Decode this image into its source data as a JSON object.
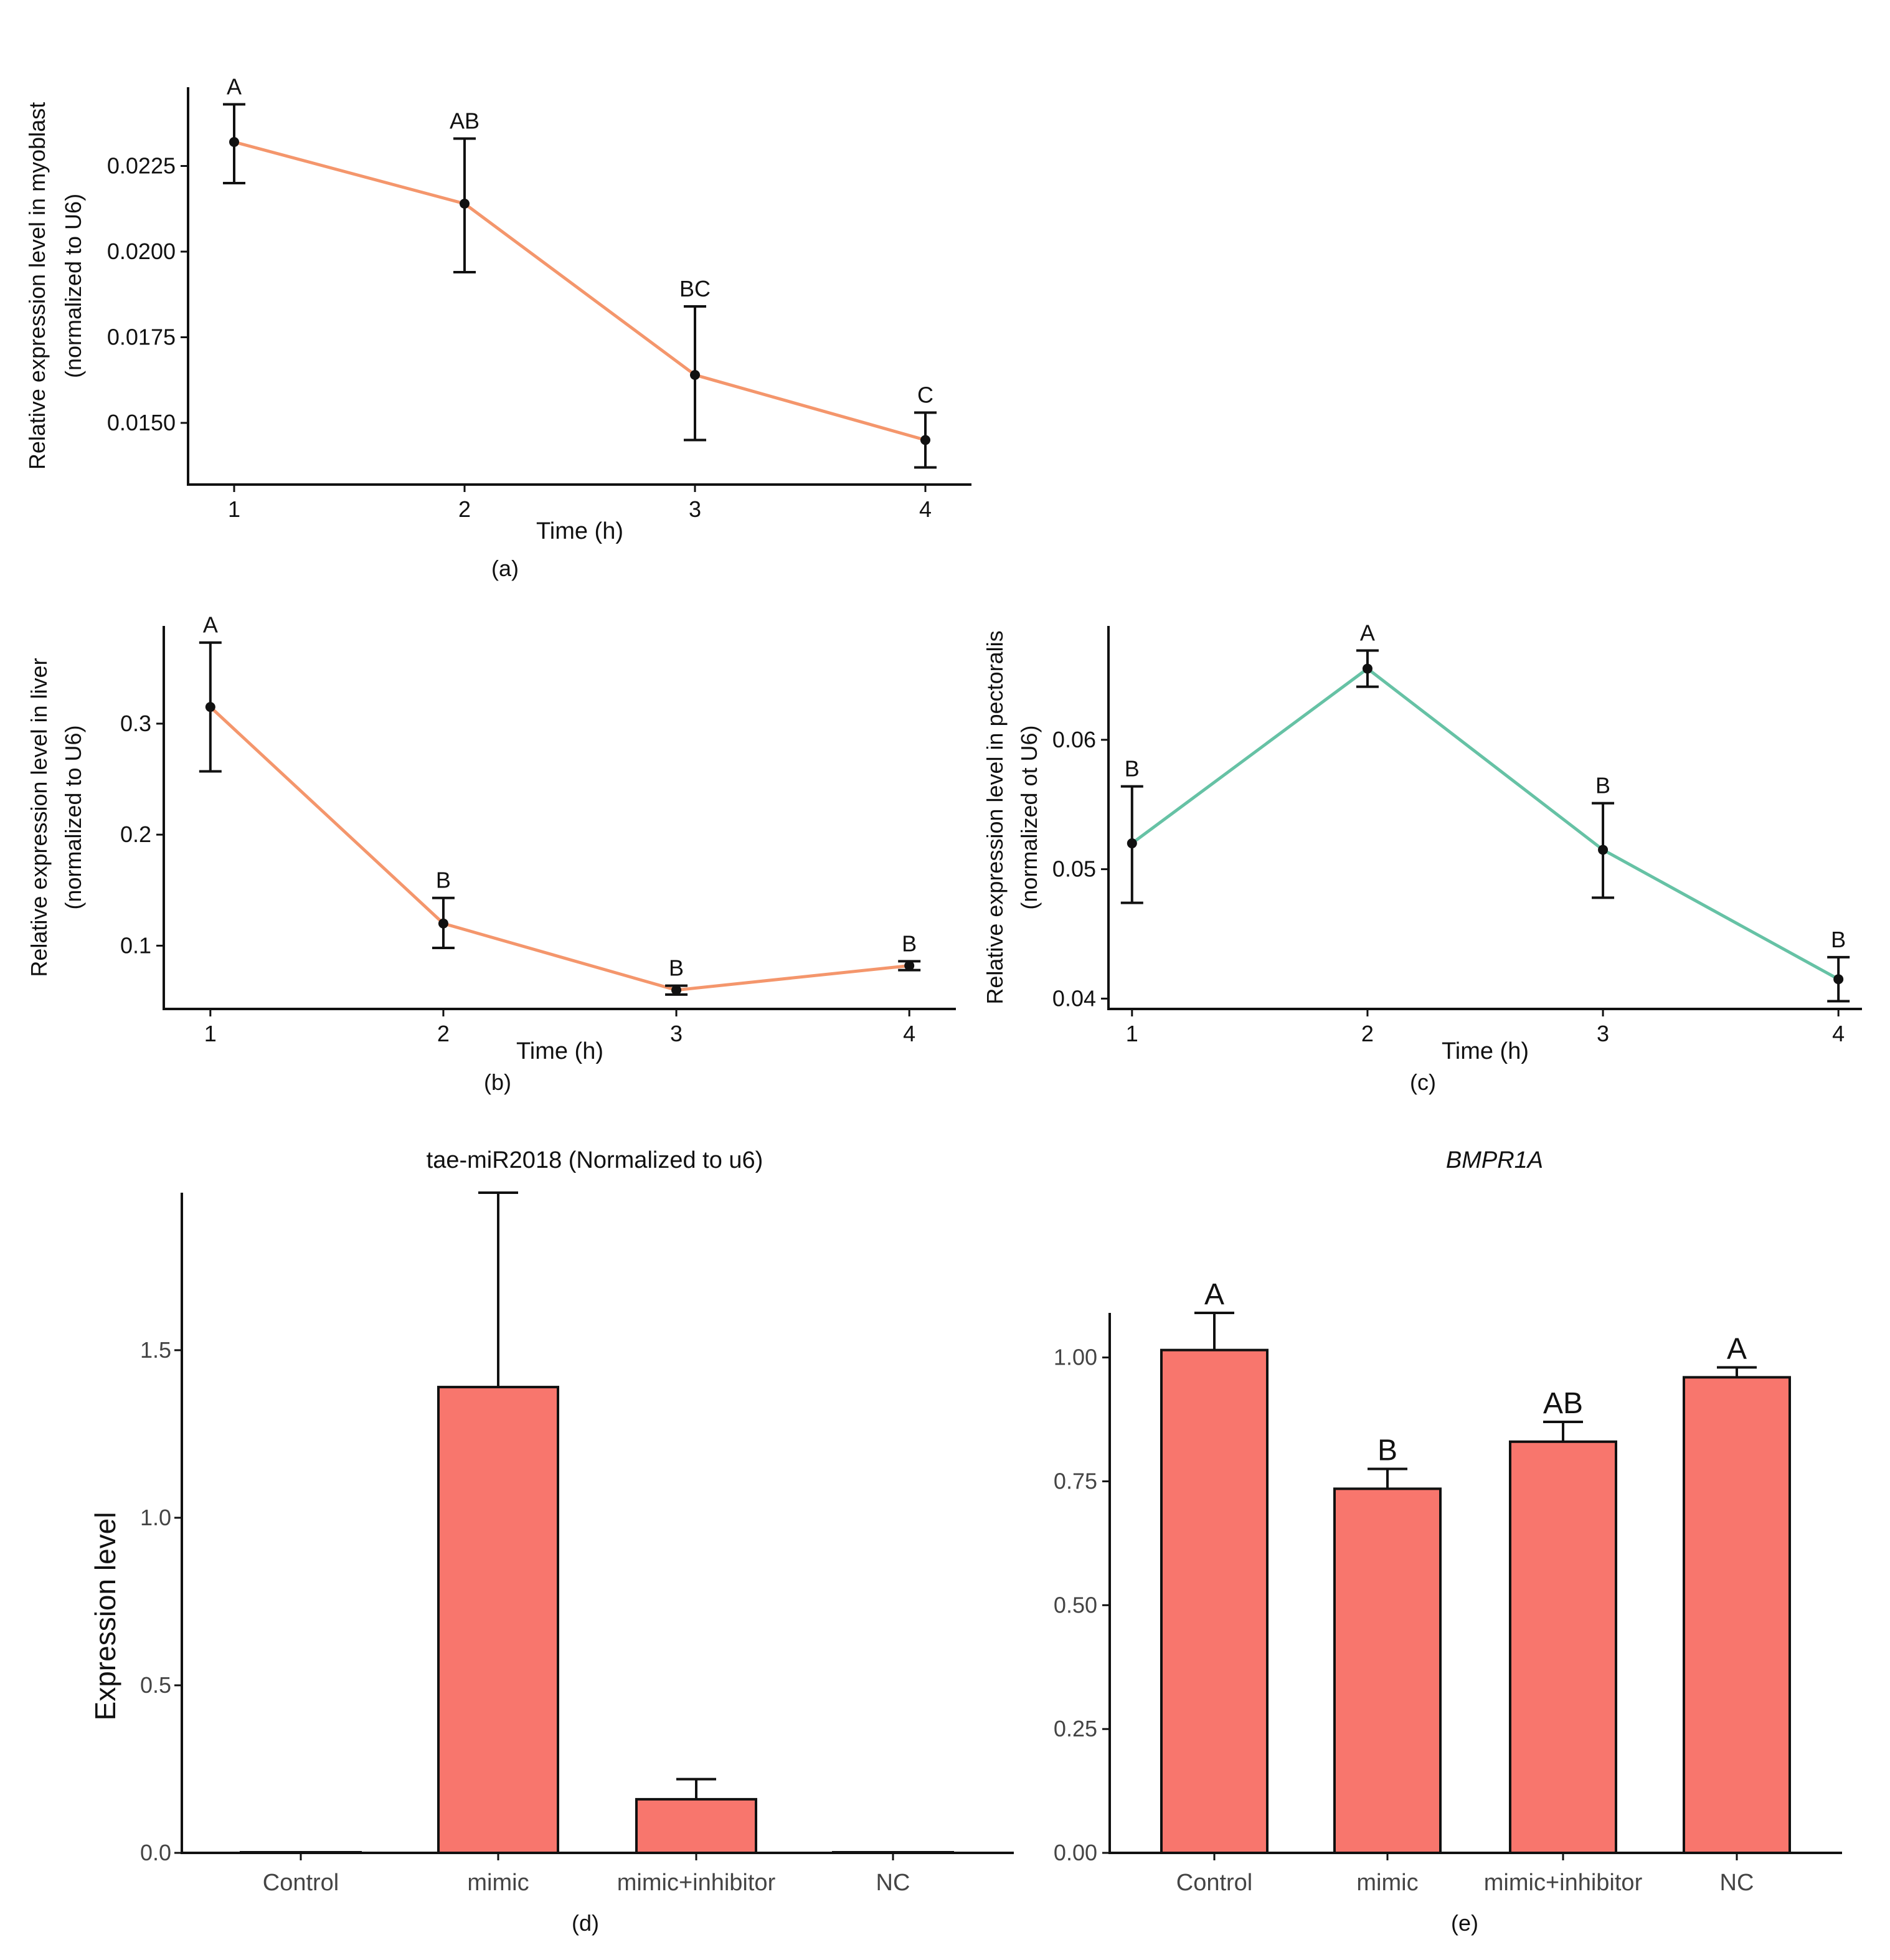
{
  "chart_data": [
    {
      "id": "a",
      "type": "line",
      "panel_label": "(a)",
      "xlabel": "Time (h)",
      "ylabel": [
        "Relative expression level in myoblast",
        "(normalized to U6)"
      ],
      "x": [
        1,
        2,
        3,
        4
      ],
      "x_ticks": [
        "1",
        "2",
        "3",
        "4"
      ],
      "xlim": [
        0.8,
        4.2
      ],
      "ylim": [
        0.0132,
        0.0248
      ],
      "y_ticks": [
        0.015,
        0.0175,
        0.02,
        0.0225
      ],
      "y_tick_labels": [
        "0.0150",
        "0.0175",
        "0.0200",
        "0.0225"
      ],
      "series": [
        {
          "name": "expression",
          "color": "#F4966C",
          "values": [
            0.0232,
            0.0214,
            0.0164,
            0.0145
          ],
          "err_low": [
            0.022,
            0.0194,
            0.0145,
            0.0137
          ],
          "err_high": [
            0.0243,
            0.0233,
            0.0184,
            0.0153
          ],
          "labels": [
            "A",
            "AB",
            "BC",
            "C"
          ]
        }
      ]
    },
    {
      "id": "b",
      "type": "line",
      "panel_label": "(b)",
      "xlabel": "Time (h)",
      "ylabel": [
        "Relative expression level in liver",
        "(normalized to U6)"
      ],
      "x": [
        1,
        2,
        3,
        4
      ],
      "x_ticks": [
        "1",
        "2",
        "3",
        "4"
      ],
      "xlim": [
        0.8,
        4.2
      ],
      "ylim": [
        0.043,
        0.388
      ],
      "y_ticks": [
        0.1,
        0.2,
        0.3
      ],
      "y_tick_labels": [
        "0.1",
        "0.2",
        "0.3"
      ],
      "series": [
        {
          "name": "expression",
          "color": "#F4966C",
          "values": [
            0.315,
            0.12,
            0.06,
            0.082
          ],
          "err_low": [
            0.257,
            0.098,
            0.056,
            0.078
          ],
          "err_high": [
            0.373,
            0.143,
            0.064,
            0.086
          ],
          "labels": [
            "A",
            "B",
            "B",
            "B"
          ]
        }
      ]
    },
    {
      "id": "c",
      "type": "line",
      "panel_label": "(c)",
      "xlabel": "Time (h)",
      "ylabel": [
        "Relative expression level in pectoralis",
        "(normalized ot U6)"
      ],
      "x": [
        1,
        2,
        3,
        4
      ],
      "x_ticks": [
        "1",
        "2",
        "3",
        "4"
      ],
      "xlim": [
        0.9,
        4.1
      ],
      "ylim": [
        0.0392,
        0.0688
      ],
      "y_ticks": [
        0.04,
        0.05,
        0.06
      ],
      "y_tick_labels": [
        "0.04",
        "0.05",
        "0.06"
      ],
      "series": [
        {
          "name": "expression",
          "color": "#66C2A5",
          "values": [
            0.052,
            0.0655,
            0.0515,
            0.0415
          ],
          "err_low": [
            0.0474,
            0.0641,
            0.0478,
            0.0398
          ],
          "err_high": [
            0.0564,
            0.0669,
            0.0551,
            0.0432
          ],
          "labels": [
            "B",
            "A",
            "B",
            "B"
          ]
        }
      ]
    },
    {
      "id": "d",
      "type": "bar",
      "panel_label": "(d)",
      "title": "tae-miR2018 (Normalized to u6)",
      "xlabel": "",
      "ylabel": "Expression level",
      "categories": [
        "Control",
        "mimic",
        "mimic+inhibitor",
        "NC"
      ],
      "values": [
        0.001,
        1.39,
        0.16,
        0.001
      ],
      "err_high": [
        0.001,
        1.97,
        0.22,
        0.001
      ],
      "bar_color": "#F8766D",
      "ylim": [
        0,
        1.97
      ],
      "y_ticks": [
        0,
        0.5,
        1,
        1.5
      ],
      "y_tick_labels": [
        "0.0",
        "0.5",
        "1.0",
        "1.5"
      ],
      "labels": [
        "",
        "",
        "",
        ""
      ]
    },
    {
      "id": "e",
      "type": "bar",
      "panel_label": "(e)",
      "title": "BMPR1A",
      "xlabel": "",
      "ylabel": "",
      "categories": [
        "Control",
        "mimic",
        "mimic+inhibitor",
        "NC"
      ],
      "values": [
        1.015,
        0.735,
        0.83,
        0.96
      ],
      "err_high": [
        1.09,
        0.775,
        0.87,
        0.98
      ],
      "bar_color": "#F8766D",
      "ylim": [
        0,
        1.09
      ],
      "y_ticks": [
        0,
        0.25,
        0.5,
        0.75,
        1
      ],
      "y_tick_labels": [
        "0.00",
        "0.25",
        "0.50",
        "0.75",
        "1.00"
      ],
      "labels": [
        "A",
        "B",
        "AB",
        "A"
      ]
    }
  ]
}
